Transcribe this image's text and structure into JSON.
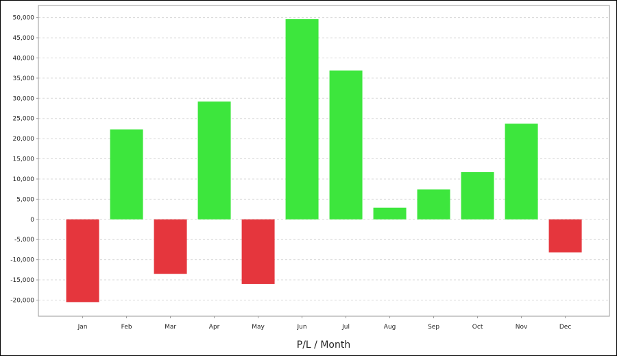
{
  "chart_data": {
    "type": "bar",
    "title": "",
    "xlabel": "P/L / Month",
    "ylabel": "",
    "categories": [
      "Jan",
      "Feb",
      "Mar",
      "Apr",
      "May",
      "Jun",
      "Jul",
      "Aug",
      "Sep",
      "Oct",
      "Nov",
      "Dec"
    ],
    "values": [
      -20500,
      22300,
      -13500,
      29200,
      -16000,
      49600,
      36900,
      2900,
      7400,
      11700,
      23700,
      -8200
    ],
    "ylim": [
      -24000,
      53000
    ],
    "yticks": [
      -20000,
      -15000,
      -10000,
      -5000,
      0,
      5000,
      10000,
      15000,
      20000,
      25000,
      30000,
      35000,
      40000,
      45000,
      50000
    ],
    "ytick_labels": [
      "-20,000",
      "-15,000",
      "-10,000",
      "-5,000",
      "0",
      "5,000",
      "10,000",
      "15,000",
      "20,000",
      "25,000",
      "30,000",
      "35,000",
      "40,000",
      "45,000",
      "50,000"
    ],
    "grid": true,
    "legend": "none",
    "colors": {
      "positive": "#3de63d",
      "negative": "#e5363d",
      "grid": "#d8d8d8",
      "axis": "#999999"
    }
  }
}
